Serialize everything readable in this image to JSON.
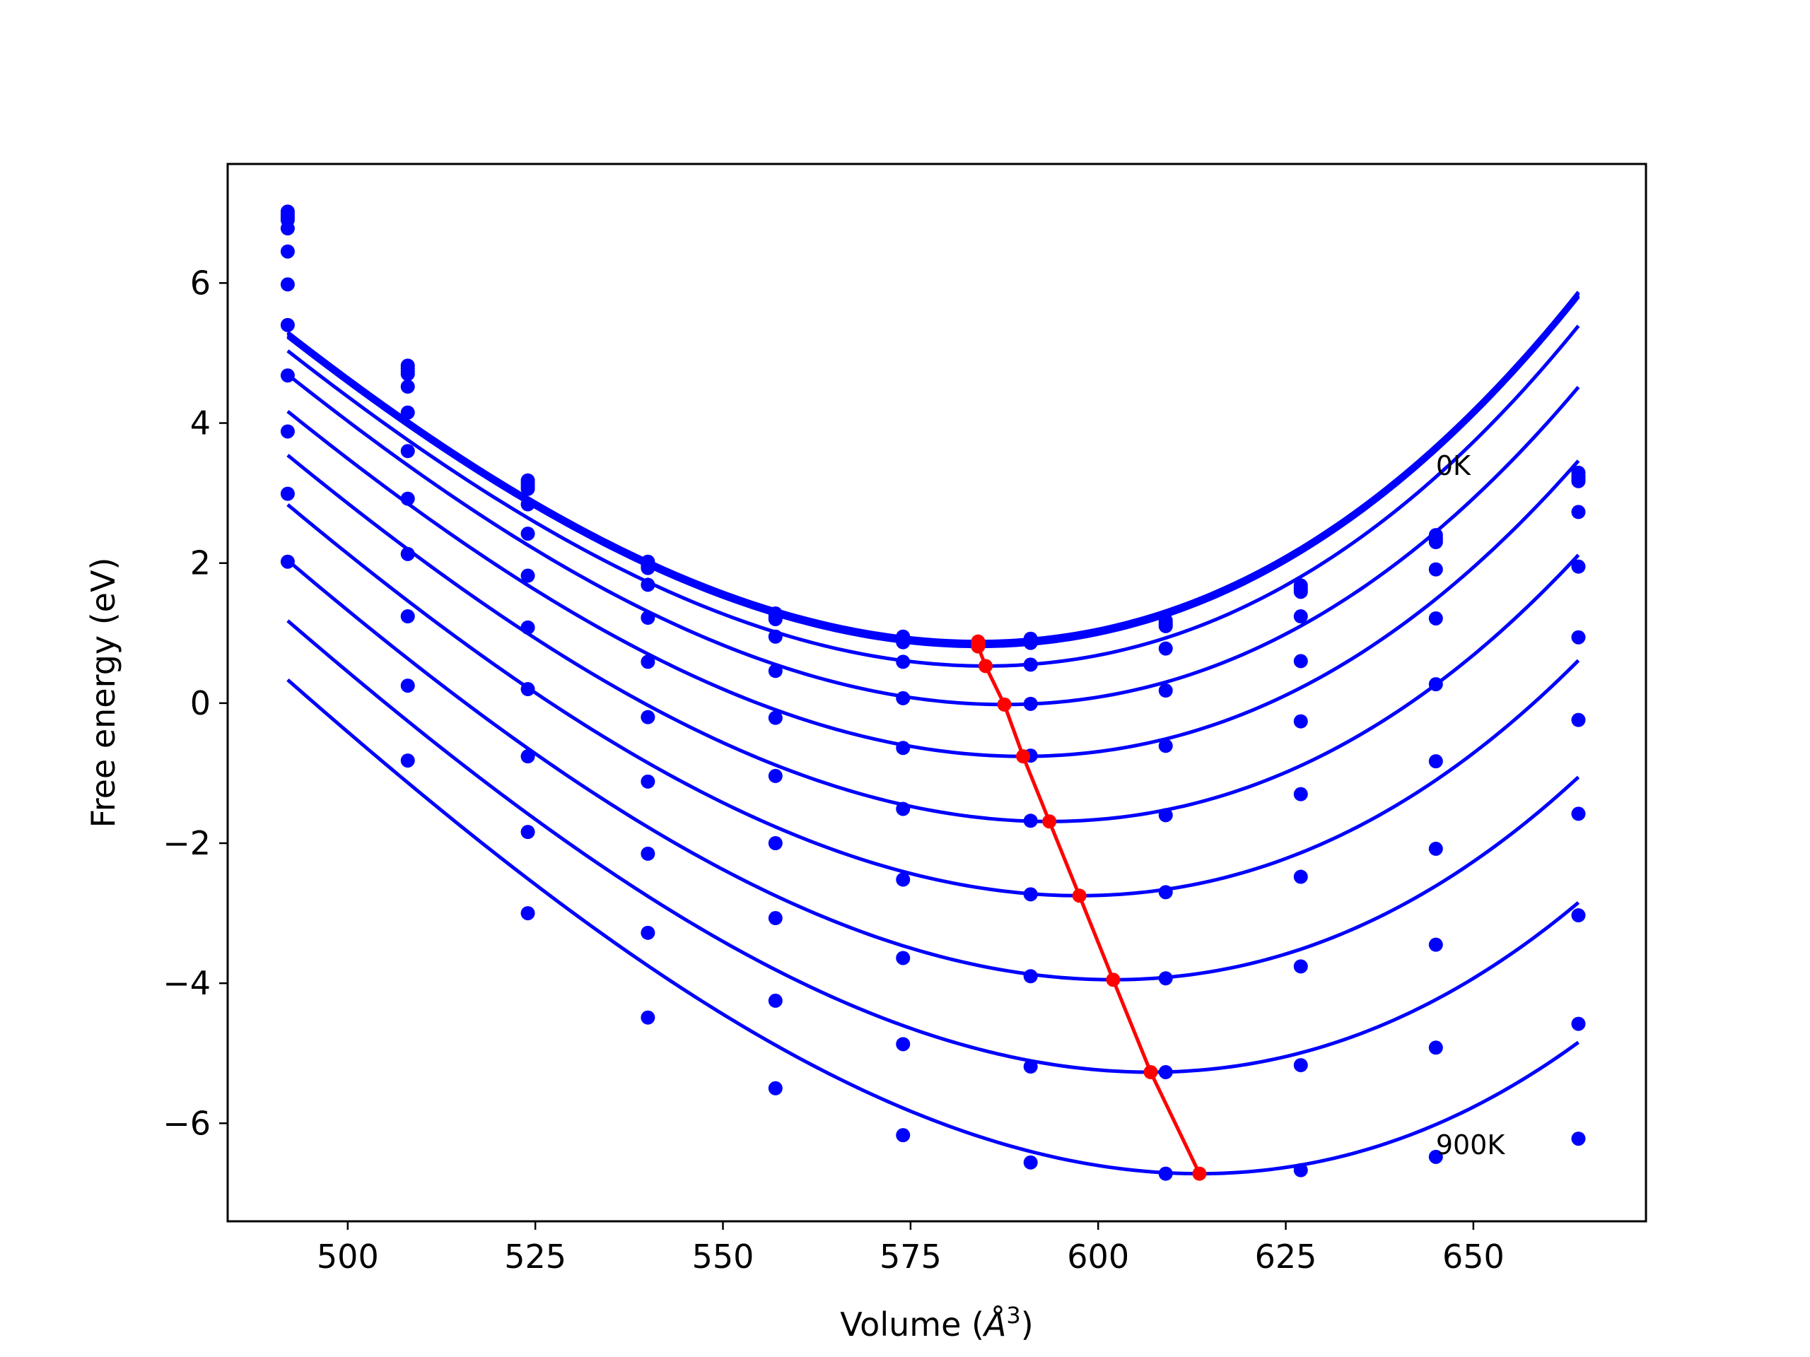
{
  "chart_data": {
    "type": "line",
    "title": "",
    "xlabel": "Volume (Å³)",
    "xlabel_parts": {
      "main": "Volume (",
      "symbol": "Å",
      "exponent": "3",
      "close": ")"
    },
    "ylabel": "Free energy (eV)",
    "xlim": [
      484,
      673
    ],
    "ylim": [
      -7.4,
      7.7
    ],
    "x_ticks": [
      500,
      525,
      550,
      575,
      600,
      625,
      650
    ],
    "y_ticks": [
      -6,
      -4,
      -2,
      0,
      2,
      4,
      6
    ],
    "y_tick_labels": [
      "−6",
      "−4",
      "−2",
      "0",
      "2",
      "4",
      "6"
    ],
    "grid": false,
    "annotations": [
      {
        "text": "0K",
        "x": 645,
        "y": 3.4
      },
      {
        "text": "900K",
        "x": 645,
        "y": -6.3
      }
    ],
    "x_points": [
      492,
      508,
      524,
      540,
      557,
      574,
      591,
      609,
      627,
      645,
      664
    ],
    "series": [
      {
        "color": "#0000ff",
        "values": [
          7.02,
          4.82,
          3.18,
          2.02,
          1.28,
          0.95,
          0.92,
          1.18,
          1.68,
          2.4,
          3.29
        ],
        "fit": {
          "x0": 584,
          "y0": 0.88,
          "a": 0.00066,
          "b": 1.5e-06
        }
      },
      {
        "color": "#0000ff",
        "values": [
          6.98,
          4.78,
          3.14,
          1.99,
          1.25,
          0.92,
          0.9,
          1.15,
          1.65,
          2.36,
          3.24
        ],
        "fit": {
          "x0": 584,
          "y0": 0.86,
          "a": 0.00066,
          "b": 1.5e-06
        }
      },
      {
        "color": "#0000ff",
        "values": [
          6.94,
          4.74,
          3.1,
          1.96,
          1.22,
          0.89,
          0.88,
          1.12,
          1.62,
          2.33,
          3.2
        ],
        "fit": {
          "x0": 584,
          "y0": 0.83,
          "a": 0.00066,
          "b": 1.5e-06
        }
      },
      {
        "color": "#0000ff",
        "values": [
          6.9,
          4.7,
          3.06,
          1.93,
          1.2,
          0.87,
          0.86,
          1.1,
          1.59,
          2.3,
          3.17
        ],
        "fit": {
          "x0": 584,
          "y0": 0.81,
          "a": 0.00066,
          "b": 1.5e-06
        }
      },
      {
        "color": "#0000ff",
        "values": [
          6.78,
          4.52,
          2.84,
          1.69,
          0.95,
          0.59,
          0.55,
          0.78,
          1.24,
          1.91,
          2.73
        ],
        "fit": {
          "x0": 585,
          "y0": 0.53,
          "a": 0.00066,
          "b": 1.5e-06
        }
      },
      {
        "color": "#0000ff",
        "values": [
          6.45,
          4.15,
          2.42,
          1.22,
          0.46,
          0.07,
          -0.01,
          0.18,
          0.6,
          1.21,
          1.95
        ],
        "fit": {
          "x0": 587.5,
          "y0": -0.02,
          "a": 0.00066,
          "b": 1.5e-06
        }
      },
      {
        "color": "#0000ff",
        "values": [
          5.98,
          3.6,
          1.82,
          0.59,
          -0.21,
          -0.64,
          -0.75,
          -0.61,
          -0.26,
          0.27,
          0.94
        ],
        "fit": {
          "x0": 590,
          "y0": -0.76,
          "a": 0.00066,
          "b": 1.5e-06
        }
      },
      {
        "color": "#0000ff",
        "values": [
          5.4,
          2.92,
          1.08,
          -0.2,
          -1.04,
          -1.51,
          -1.68,
          -1.6,
          -1.3,
          -0.83,
          -0.24
        ],
        "fit": {
          "x0": 593.5,
          "y0": -1.69,
          "a": 0.00066,
          "b": 1.5e-06
        }
      },
      {
        "color": "#0000ff",
        "values": [
          4.68,
          2.13,
          0.2,
          -1.12,
          -2.0,
          -2.52,
          -2.73,
          -2.7,
          -2.48,
          -2.08,
          -1.58
        ],
        "fit": {
          "x0": 597.5,
          "y0": -2.75,
          "a": 0.00066,
          "b": 1.5e-06
        }
      },
      {
        "color": "#0000ff",
        "values": [
          3.88,
          1.24,
          -0.76,
          -2.15,
          -3.07,
          -3.64,
          -3.9,
          -3.93,
          -3.76,
          -3.45,
          -3.03
        ],
        "fit": {
          "x0": 602,
          "y0": -3.95,
          "a": 0.00066,
          "b": 1.5e-06
        }
      },
      {
        "color": "#0000ff",
        "values": [
          2.99,
          0.25,
          -1.84,
          -3.28,
          -4.25,
          -4.87,
          -5.19,
          -5.27,
          -5.17,
          -4.92,
          -4.58
        ],
        "fit": {
          "x0": 607,
          "y0": -5.27,
          "a": 0.00066,
          "b": 1.5e-06
        }
      },
      {
        "color": "#0000ff",
        "values": [
          2.02,
          -0.82,
          -3.0,
          -4.49,
          -5.5,
          -6.17,
          -6.56,
          -6.72,
          -6.67,
          -6.48,
          -6.22
        ],
        "fit": {
          "x0": 613.5,
          "y0": -6.72,
          "a": 0.00066,
          "b": 1.5e-06
        }
      }
    ],
    "minima_line": {
      "color": "#ff0000",
      "x": [
        584,
        584,
        584,
        584,
        585,
        587.5,
        590,
        593.5,
        597.5,
        602,
        607,
        613.5
      ],
      "y": [
        0.88,
        0.86,
        0.83,
        0.81,
        0.53,
        -0.02,
        -0.76,
        -1.69,
        -2.75,
        -3.95,
        -5.27,
        -6.72
      ]
    }
  }
}
